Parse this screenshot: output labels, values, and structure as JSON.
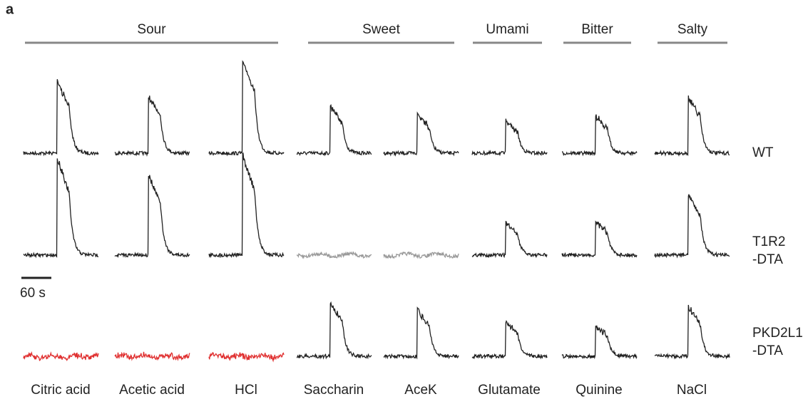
{
  "panel_label": "a",
  "groups": [
    "Sour",
    "Sweet",
    "Umami",
    "Bitter",
    "Salty"
  ],
  "columns": [
    "Citric acid",
    "Acetic acid",
    "HCl",
    "Saccharin",
    "AceK",
    "Glutamate",
    "Quinine",
    "NaCl"
  ],
  "rows": [
    [
      "WT"
    ],
    [
      "T1R2",
      "-DTA"
    ],
    [
      "PKD2L1",
      "-DTA"
    ]
  ],
  "scale_bar": "60 s"
}
